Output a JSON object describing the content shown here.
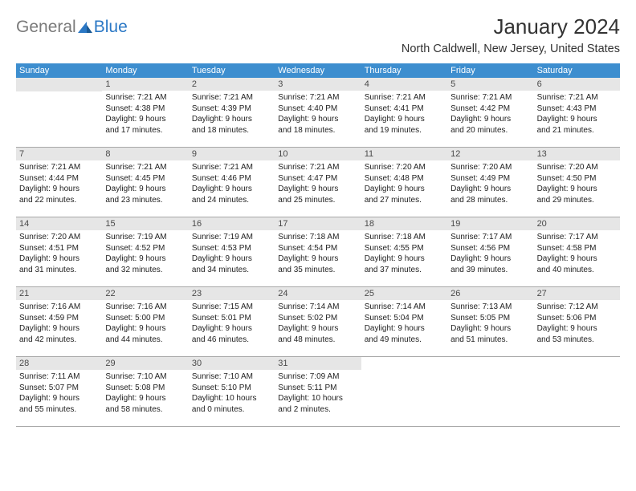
{
  "logo": {
    "general": "General",
    "blue": "Blue"
  },
  "header": {
    "title": "January 2024",
    "location": "North Caldwell, New Jersey, United States"
  },
  "colors": {
    "header_bg": "#3d8ecf",
    "header_text": "#ffffff",
    "daynum_bg": "#e6e6e6",
    "daynum_text": "#4a4a4a",
    "row_border": "#a8a8a8",
    "logo_gray": "#7a7a7a",
    "logo_blue": "#2b78c5"
  },
  "weekdays": [
    "Sunday",
    "Monday",
    "Tuesday",
    "Wednesday",
    "Thursday",
    "Friday",
    "Saturday"
  ],
  "days": [
    {
      "n": "1",
      "sr": "Sunrise: 7:21 AM",
      "ss": "Sunset: 4:38 PM",
      "d1": "Daylight: 9 hours",
      "d2": "and 17 minutes."
    },
    {
      "n": "2",
      "sr": "Sunrise: 7:21 AM",
      "ss": "Sunset: 4:39 PM",
      "d1": "Daylight: 9 hours",
      "d2": "and 18 minutes."
    },
    {
      "n": "3",
      "sr": "Sunrise: 7:21 AM",
      "ss": "Sunset: 4:40 PM",
      "d1": "Daylight: 9 hours",
      "d2": "and 18 minutes."
    },
    {
      "n": "4",
      "sr": "Sunrise: 7:21 AM",
      "ss": "Sunset: 4:41 PM",
      "d1": "Daylight: 9 hours",
      "d2": "and 19 minutes."
    },
    {
      "n": "5",
      "sr": "Sunrise: 7:21 AM",
      "ss": "Sunset: 4:42 PM",
      "d1": "Daylight: 9 hours",
      "d2": "and 20 minutes."
    },
    {
      "n": "6",
      "sr": "Sunrise: 7:21 AM",
      "ss": "Sunset: 4:43 PM",
      "d1": "Daylight: 9 hours",
      "d2": "and 21 minutes."
    },
    {
      "n": "7",
      "sr": "Sunrise: 7:21 AM",
      "ss": "Sunset: 4:44 PM",
      "d1": "Daylight: 9 hours",
      "d2": "and 22 minutes."
    },
    {
      "n": "8",
      "sr": "Sunrise: 7:21 AM",
      "ss": "Sunset: 4:45 PM",
      "d1": "Daylight: 9 hours",
      "d2": "and 23 minutes."
    },
    {
      "n": "9",
      "sr": "Sunrise: 7:21 AM",
      "ss": "Sunset: 4:46 PM",
      "d1": "Daylight: 9 hours",
      "d2": "and 24 minutes."
    },
    {
      "n": "10",
      "sr": "Sunrise: 7:21 AM",
      "ss": "Sunset: 4:47 PM",
      "d1": "Daylight: 9 hours",
      "d2": "and 25 minutes."
    },
    {
      "n": "11",
      "sr": "Sunrise: 7:20 AM",
      "ss": "Sunset: 4:48 PM",
      "d1": "Daylight: 9 hours",
      "d2": "and 27 minutes."
    },
    {
      "n": "12",
      "sr": "Sunrise: 7:20 AM",
      "ss": "Sunset: 4:49 PM",
      "d1": "Daylight: 9 hours",
      "d2": "and 28 minutes."
    },
    {
      "n": "13",
      "sr": "Sunrise: 7:20 AM",
      "ss": "Sunset: 4:50 PM",
      "d1": "Daylight: 9 hours",
      "d2": "and 29 minutes."
    },
    {
      "n": "14",
      "sr": "Sunrise: 7:20 AM",
      "ss": "Sunset: 4:51 PM",
      "d1": "Daylight: 9 hours",
      "d2": "and 31 minutes."
    },
    {
      "n": "15",
      "sr": "Sunrise: 7:19 AM",
      "ss": "Sunset: 4:52 PM",
      "d1": "Daylight: 9 hours",
      "d2": "and 32 minutes."
    },
    {
      "n": "16",
      "sr": "Sunrise: 7:19 AM",
      "ss": "Sunset: 4:53 PM",
      "d1": "Daylight: 9 hours",
      "d2": "and 34 minutes."
    },
    {
      "n": "17",
      "sr": "Sunrise: 7:18 AM",
      "ss": "Sunset: 4:54 PM",
      "d1": "Daylight: 9 hours",
      "d2": "and 35 minutes."
    },
    {
      "n": "18",
      "sr": "Sunrise: 7:18 AM",
      "ss": "Sunset: 4:55 PM",
      "d1": "Daylight: 9 hours",
      "d2": "and 37 minutes."
    },
    {
      "n": "19",
      "sr": "Sunrise: 7:17 AM",
      "ss": "Sunset: 4:56 PM",
      "d1": "Daylight: 9 hours",
      "d2": "and 39 minutes."
    },
    {
      "n": "20",
      "sr": "Sunrise: 7:17 AM",
      "ss": "Sunset: 4:58 PM",
      "d1": "Daylight: 9 hours",
      "d2": "and 40 minutes."
    },
    {
      "n": "21",
      "sr": "Sunrise: 7:16 AM",
      "ss": "Sunset: 4:59 PM",
      "d1": "Daylight: 9 hours",
      "d2": "and 42 minutes."
    },
    {
      "n": "22",
      "sr": "Sunrise: 7:16 AM",
      "ss": "Sunset: 5:00 PM",
      "d1": "Daylight: 9 hours",
      "d2": "and 44 minutes."
    },
    {
      "n": "23",
      "sr": "Sunrise: 7:15 AM",
      "ss": "Sunset: 5:01 PM",
      "d1": "Daylight: 9 hours",
      "d2": "and 46 minutes."
    },
    {
      "n": "24",
      "sr": "Sunrise: 7:14 AM",
      "ss": "Sunset: 5:02 PM",
      "d1": "Daylight: 9 hours",
      "d2": "and 48 minutes."
    },
    {
      "n": "25",
      "sr": "Sunrise: 7:14 AM",
      "ss": "Sunset: 5:04 PM",
      "d1": "Daylight: 9 hours",
      "d2": "and 49 minutes."
    },
    {
      "n": "26",
      "sr": "Sunrise: 7:13 AM",
      "ss": "Sunset: 5:05 PM",
      "d1": "Daylight: 9 hours",
      "d2": "and 51 minutes."
    },
    {
      "n": "27",
      "sr": "Sunrise: 7:12 AM",
      "ss": "Sunset: 5:06 PM",
      "d1": "Daylight: 9 hours",
      "d2": "and 53 minutes."
    },
    {
      "n": "28",
      "sr": "Sunrise: 7:11 AM",
      "ss": "Sunset: 5:07 PM",
      "d1": "Daylight: 9 hours",
      "d2": "and 55 minutes."
    },
    {
      "n": "29",
      "sr": "Sunrise: 7:10 AM",
      "ss": "Sunset: 5:08 PM",
      "d1": "Daylight: 9 hours",
      "d2": "and 58 minutes."
    },
    {
      "n": "30",
      "sr": "Sunrise: 7:10 AM",
      "ss": "Sunset: 5:10 PM",
      "d1": "Daylight: 10 hours",
      "d2": "and 0 minutes."
    },
    {
      "n": "31",
      "sr": "Sunrise: 7:09 AM",
      "ss": "Sunset: 5:11 PM",
      "d1": "Daylight: 10 hours",
      "d2": "and 2 minutes."
    }
  ],
  "layout": {
    "start_offset": 1,
    "days_in_month": 31
  }
}
